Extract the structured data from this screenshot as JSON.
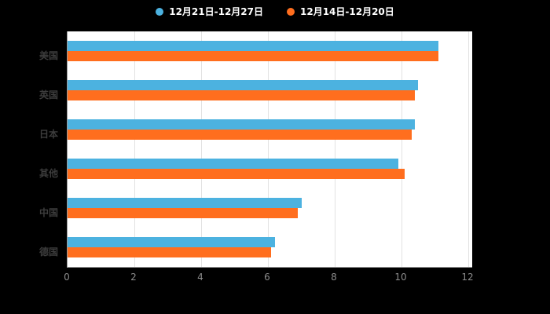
{
  "legend": [
    {
      "label": "12月21日-12月27日",
      "color": "#4CB2E0"
    },
    {
      "label": "12月14日-12月20日",
      "color": "#FF6E1E"
    }
  ],
  "chart_data": {
    "type": "bar",
    "orientation": "horizontal",
    "title": "",
    "categories": [
      "美国",
      "英国",
      "日本",
      "其他",
      "中国",
      "德国"
    ],
    "series": [
      {
        "name": "12月21日-12月27日",
        "color": "#4CB2E0",
        "values": [
          11.1,
          10.5,
          10.4,
          9.9,
          7.0,
          6.2
        ]
      },
      {
        "name": "12月14日-12月20日",
        "color": "#FF6E1E",
        "values": [
          11.1,
          10.4,
          10.3,
          10.1,
          6.9,
          6.1
        ]
      }
    ],
    "xlim": [
      0,
      12
    ],
    "x_ticks": [
      0,
      2,
      4,
      6,
      8,
      10,
      12
    ],
    "grid": true,
    "legend_position": "top",
    "xlabel": "",
    "ylabel": ""
  },
  "colors": {
    "page_background": "#000000",
    "plot_background": "#FFFFFF",
    "grid": "#E2E2E2",
    "axis": "#9A9A9A",
    "tick_label": "#8C8C8C",
    "category_label": "#3D3D3D",
    "legend_text": "#FFFFFF"
  }
}
